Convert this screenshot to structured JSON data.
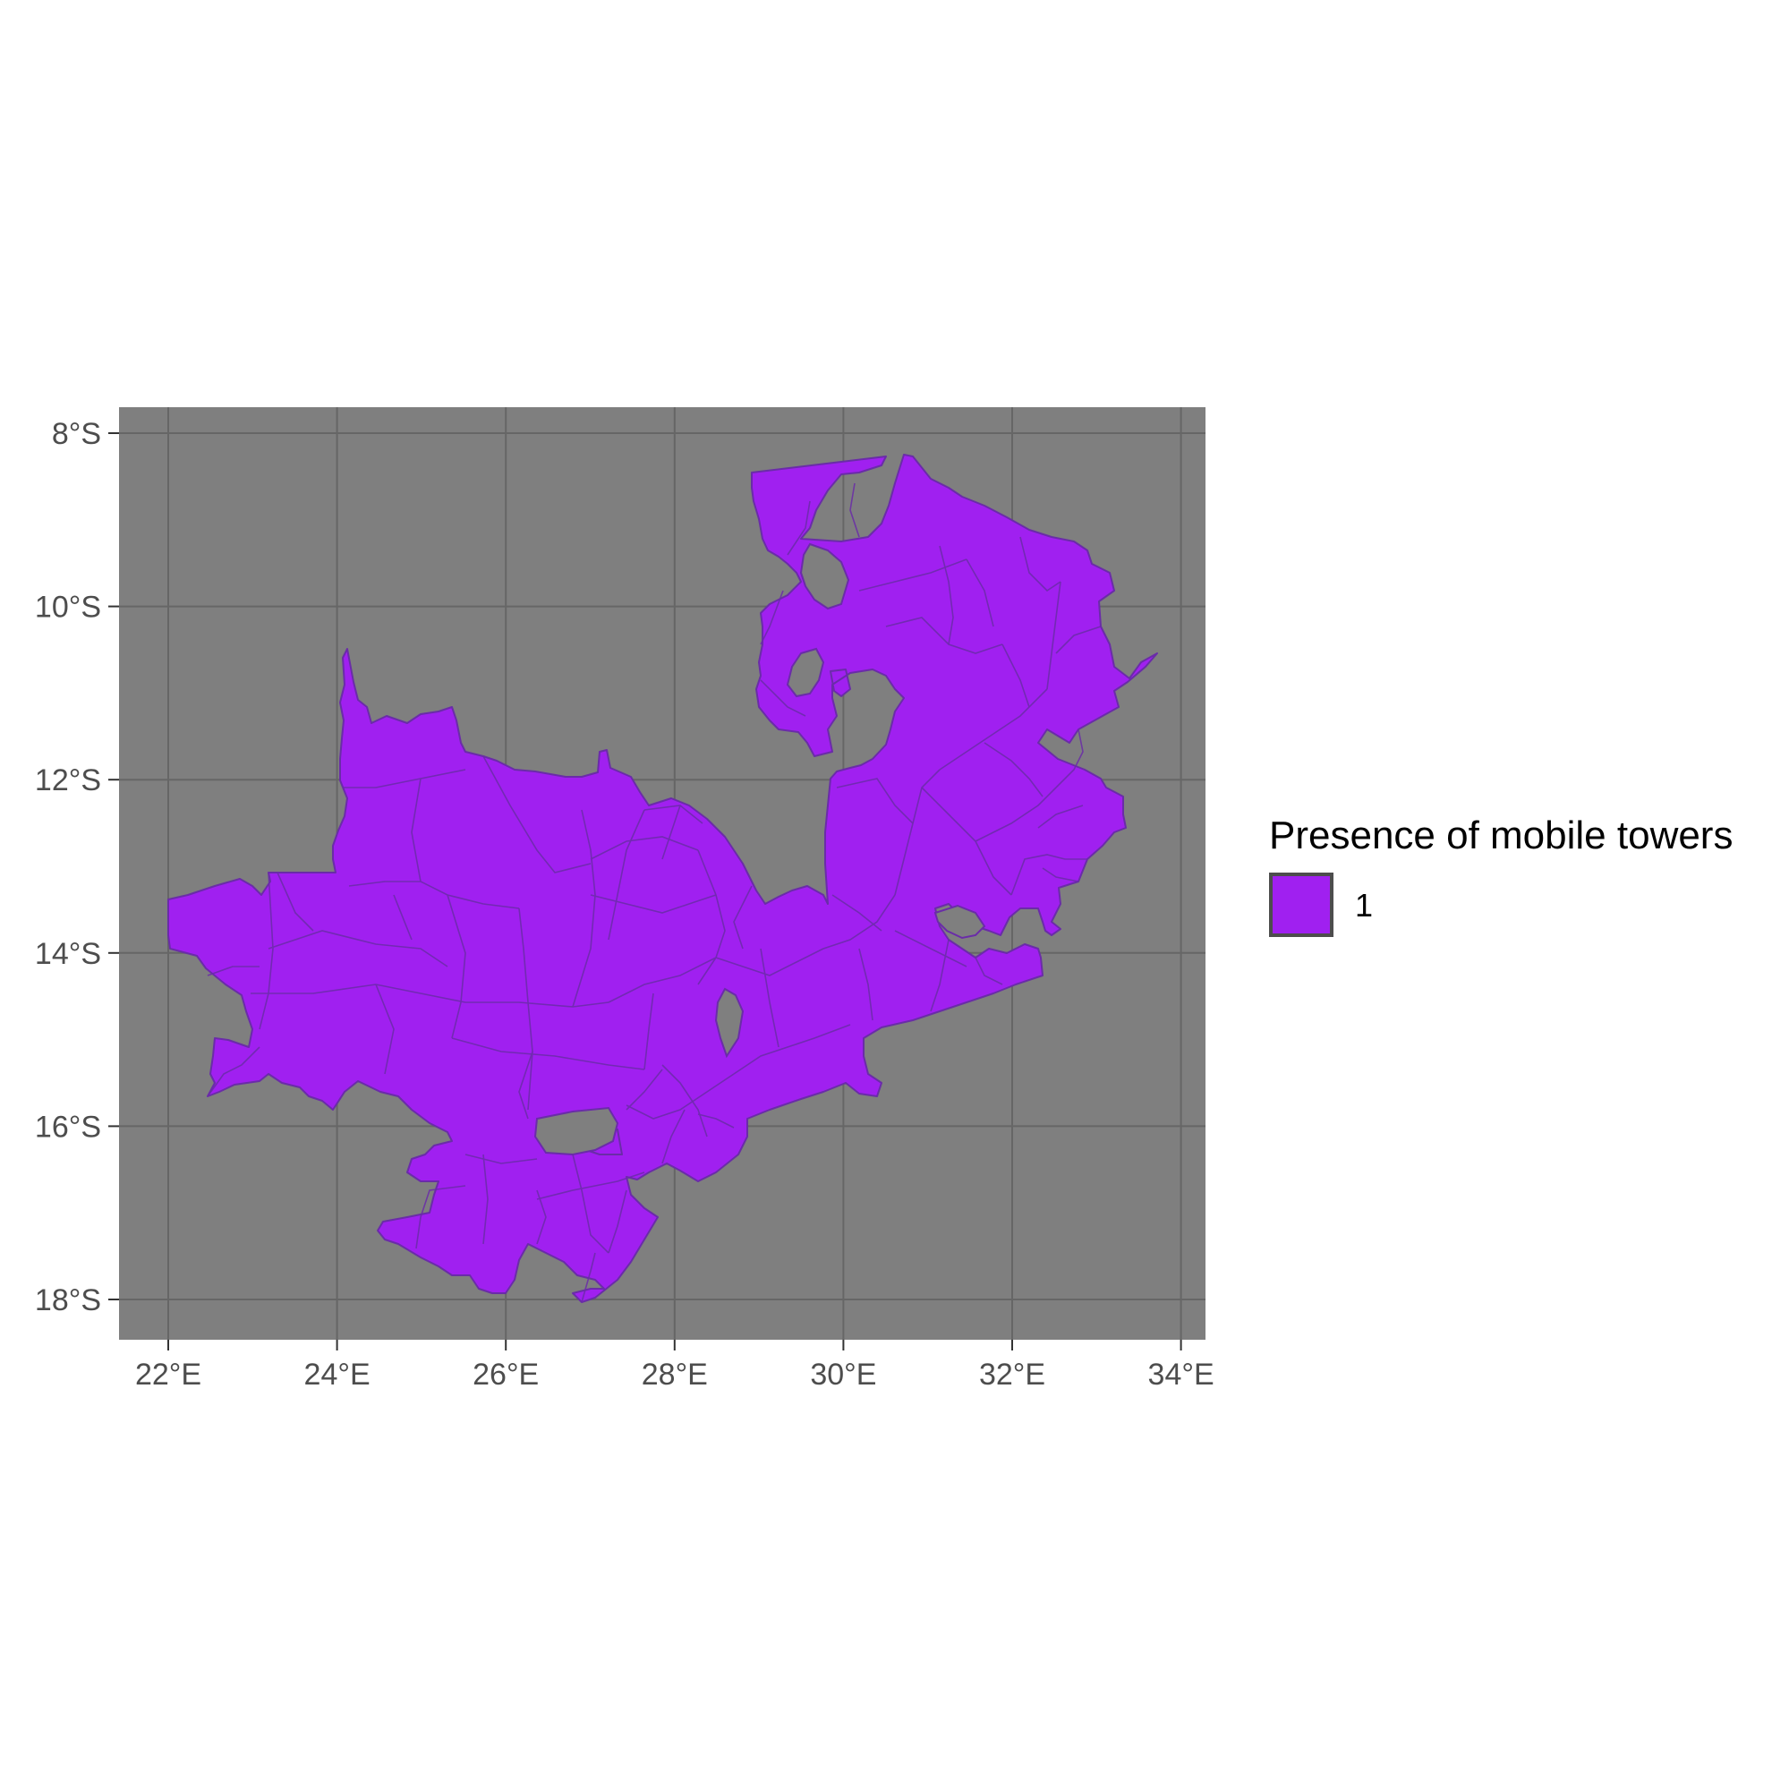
{
  "chart_data": {
    "type": "choropleth-map",
    "subject": "Zambia districts",
    "x_axis": {
      "ticks": [
        "22°E",
        "24°E",
        "26°E",
        "28°E",
        "30°E",
        "32°E",
        "34°E"
      ],
      "values": [
        22,
        24,
        26,
        28,
        30,
        32,
        34
      ],
      "range": [
        21.4,
        34.3
      ]
    },
    "y_axis": {
      "ticks": [
        "8°S",
        "10°S",
        "12°S",
        "14°S",
        "16°S",
        "18°S"
      ],
      "values": [
        -8,
        -10,
        -12,
        -14,
        -16,
        -18
      ],
      "range": [
        -18.5,
        -7.7
      ]
    },
    "grid": true,
    "legend": {
      "title": "Presence of mobile towers",
      "position": "right",
      "entries": [
        {
          "label": "1",
          "color": "#a020f0"
        }
      ]
    },
    "colors": {
      "fill": "#a020f0",
      "border": "#6a2ca8",
      "panel": "#7f7f7f",
      "grid": "#666666"
    }
  }
}
